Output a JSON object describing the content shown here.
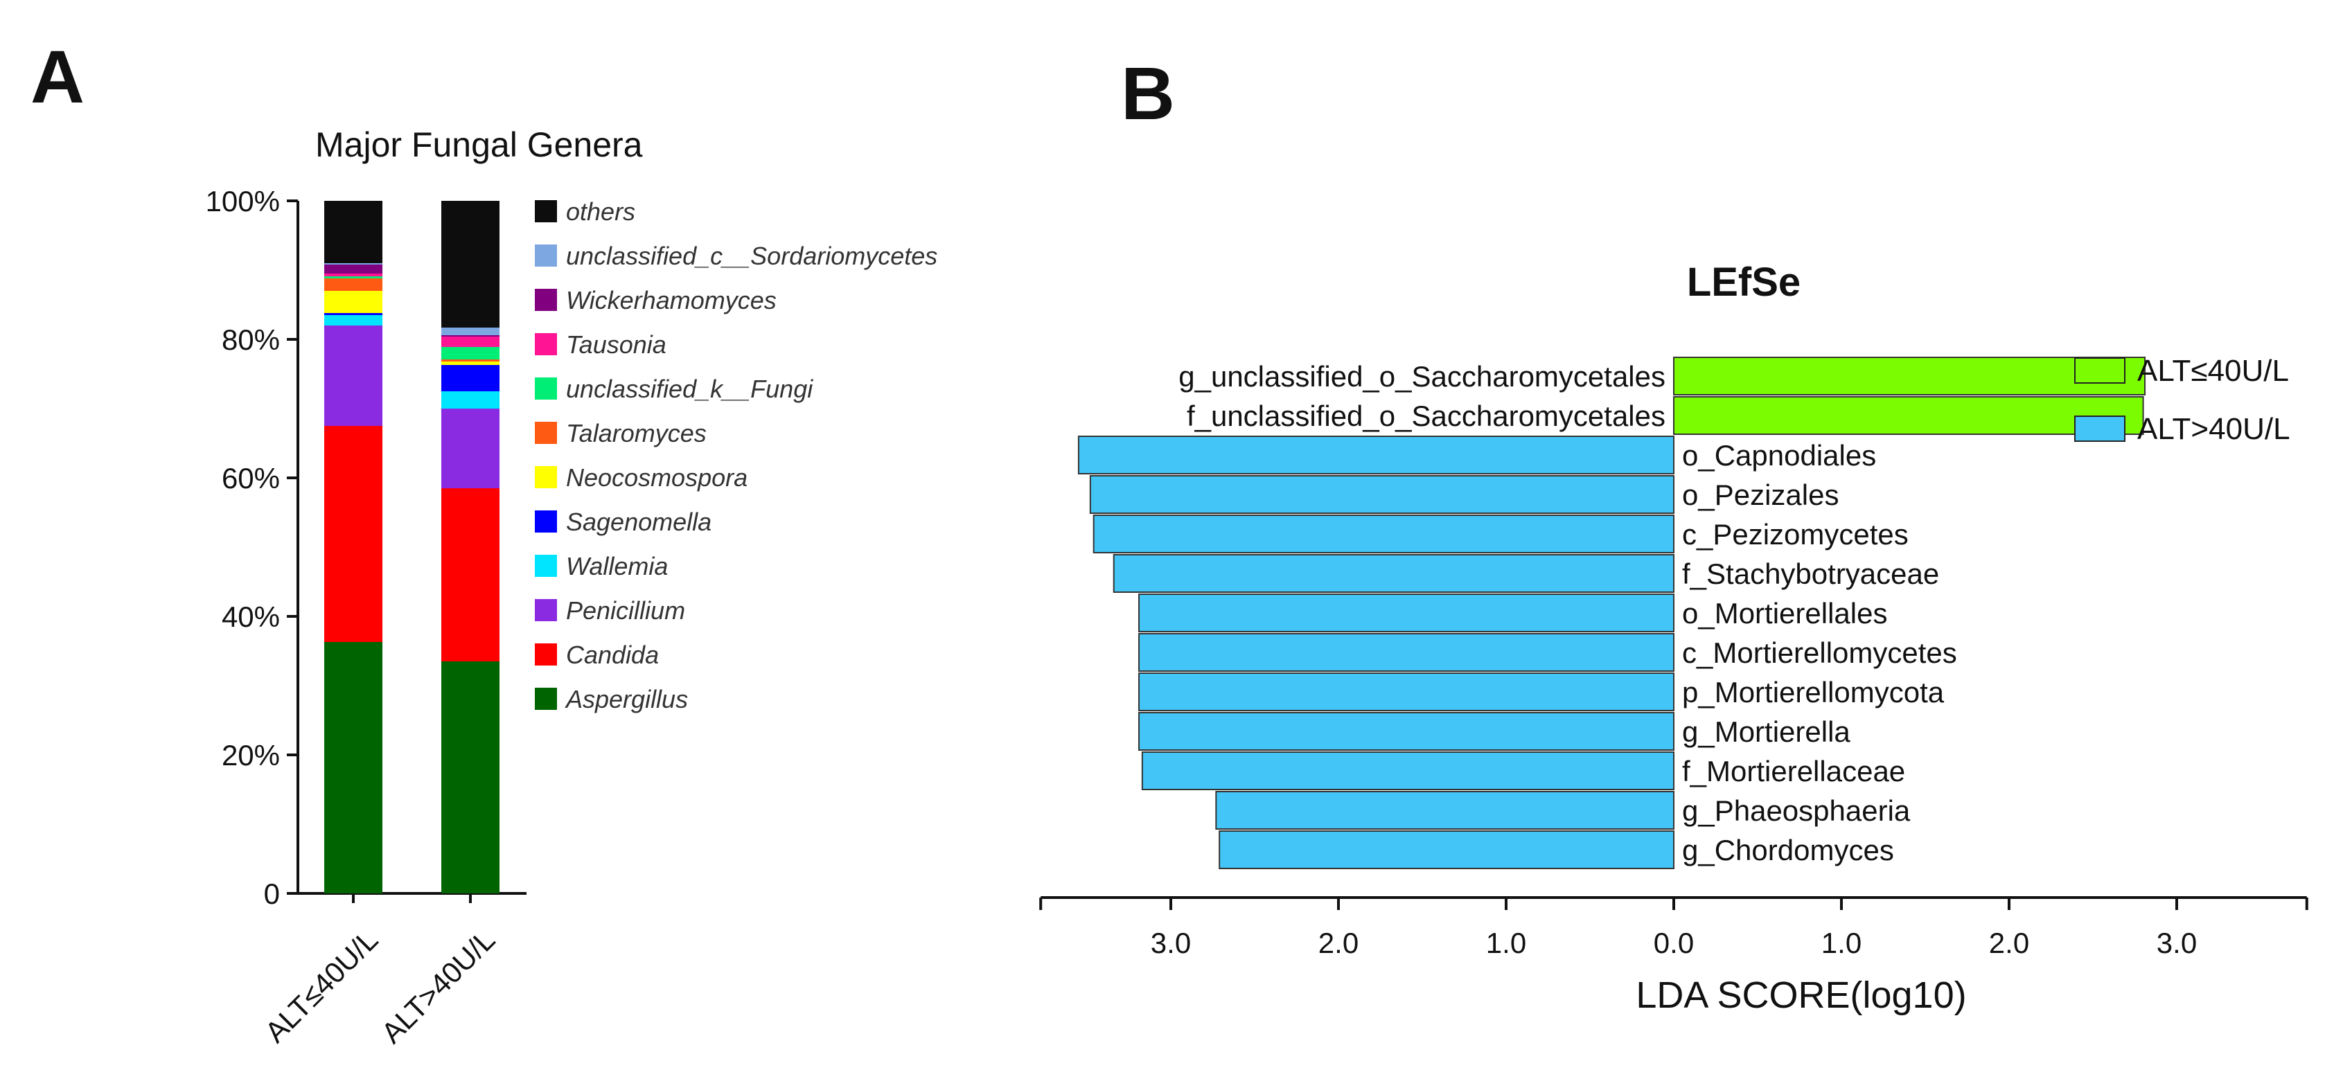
{
  "panels": {
    "a": {
      "letter": "A"
    },
    "b": {
      "letter": "B"
    }
  },
  "chart_data": [
    {
      "type": "bar",
      "stacked": true,
      "title": "Major Fungal Genera",
      "categories": [
        "ALT≤40U/L",
        "ALT>40U/L"
      ],
      "y_ticks": [
        0,
        20,
        40,
        60,
        80,
        100
      ],
      "y_tick_labels": [
        "0",
        "20%",
        "40%",
        "60%",
        "80%",
        "100%"
      ],
      "ylim": [
        0,
        100
      ],
      "xlabel": "",
      "ylabel": "",
      "legend_position": "right",
      "series": [
        {
          "name": "Aspergillus",
          "color": "#006400",
          "values": [
            36.3,
            33.5
          ]
        },
        {
          "name": "Candida",
          "color": "#ff0000",
          "values": [
            31.2,
            25.0
          ]
        },
        {
          "name": "Penicillium",
          "color": "#8a2be2",
          "values": [
            14.5,
            11.5
          ]
        },
        {
          "name": "Wallemia",
          "color": "#00e5ff",
          "values": [
            1.5,
            2.5
          ]
        },
        {
          "name": "Sagenomella",
          "color": "#0000ff",
          "values": [
            0.3,
            3.8
          ]
        },
        {
          "name": "Neocosmospora",
          "color": "#ffff00",
          "values": [
            3.2,
            0.5
          ]
        },
        {
          "name": "Talaromyces",
          "color": "#ff5a14",
          "values": [
            1.8,
            0.3
          ]
        },
        {
          "name": "unclassified_k__Fungi",
          "color": "#00ee76",
          "values": [
            0.3,
            1.8
          ]
        },
        {
          "name": "Tausonia",
          "color": "#ff1493",
          "values": [
            0.4,
            1.5
          ]
        },
        {
          "name": "Wickerhamomyces",
          "color": "#800080",
          "values": [
            1.3,
            0.2
          ]
        },
        {
          "name": "unclassified_c__Sordariomycetes",
          "color": "#7da7e0",
          "values": [
            0.2,
            1.1
          ]
        },
        {
          "name": "others",
          "color": "#0d0d0d",
          "values": [
            9.0,
            18.3
          ]
        }
      ]
    },
    {
      "type": "bar",
      "orientation": "horizontal",
      "diverging": true,
      "title": "LEfSe",
      "xlabel": "LDA SCORE(log10)",
      "xlim": [
        -3.9,
        3.9
      ],
      "x_ticks": [
        -3,
        -2,
        -1,
        0,
        1,
        2,
        3
      ],
      "x_tick_labels": [
        "3.0",
        "2.0",
        "1.0",
        "0.0",
        "1.0",
        "2.0",
        "3.0"
      ],
      "legend_position": "top-right",
      "groups": [
        {
          "name": "ALT≤40U/L",
          "color": "#7cfc00"
        },
        {
          "name": "ALT>40U/L",
          "color": "#43c6f7"
        }
      ],
      "bars": [
        {
          "label": "g_unclassified_o_Saccharomycetales",
          "value": 2.81,
          "group": "ALT≤40U/L"
        },
        {
          "label": "f_unclassified_o_Saccharomycetales",
          "value": 2.8,
          "group": "ALT≤40U/L"
        },
        {
          "label": "o_Capnodiales",
          "value": -3.55,
          "group": "ALT>40U/L"
        },
        {
          "label": "o_Pezizales",
          "value": -3.48,
          "group": "ALT>40U/L"
        },
        {
          "label": "c_Pezizomycetes",
          "value": -3.46,
          "group": "ALT>40U/L"
        },
        {
          "label": "f_Stachybotryaceae",
          "value": -3.34,
          "group": "ALT>40U/L"
        },
        {
          "label": "o_Mortierellales",
          "value": -3.19,
          "group": "ALT>40U/L"
        },
        {
          "label": "c_Mortierellomycetes",
          "value": -3.19,
          "group": "ALT>40U/L"
        },
        {
          "label": "p_Mortierellomycota",
          "value": -3.19,
          "group": "ALT>40U/L"
        },
        {
          "label": "g_Mortierella",
          "value": -3.19,
          "group": "ALT>40U/L"
        },
        {
          "label": "f_Mortierellaceae",
          "value": -3.17,
          "group": "ALT>40U/L"
        },
        {
          "label": "g_Phaeosphaeria",
          "value": -2.73,
          "group": "ALT>40U/L"
        },
        {
          "label": "g_Chordomyces",
          "value": -2.71,
          "group": "ALT>40U/L"
        }
      ]
    }
  ]
}
